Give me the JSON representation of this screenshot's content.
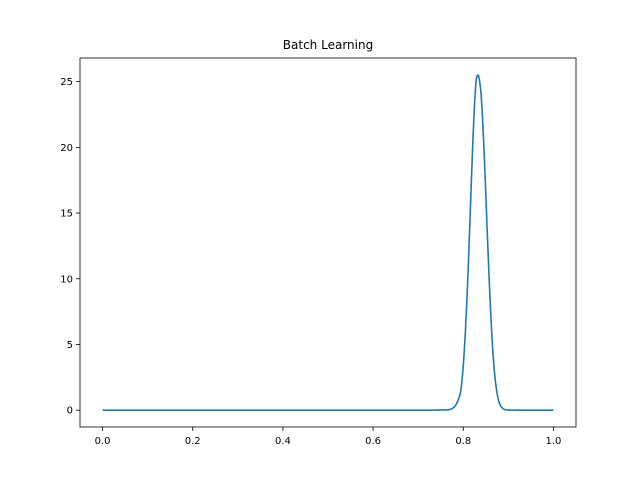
{
  "chart_data": {
    "type": "line",
    "title": "Batch Learning",
    "xlabel": "",
    "ylabel": "",
    "xlim": [
      -0.05,
      1.05
    ],
    "ylim": [
      -1.28,
      26.8
    ],
    "grid": false,
    "xticks": [
      0.0,
      0.2,
      0.4,
      0.6,
      0.8,
      1.0
    ],
    "xtick_labels": [
      "0.0",
      "0.2",
      "0.4",
      "0.6",
      "0.8",
      "1.0"
    ],
    "yticks": [
      0,
      5,
      10,
      15,
      20,
      25
    ],
    "ytick_labels": [
      "0",
      "5",
      "10",
      "15",
      "20",
      "25"
    ],
    "series": [
      {
        "color": "#1f77b4",
        "x": [
          0.0,
          0.1,
          0.2,
          0.3,
          0.4,
          0.5,
          0.6,
          0.7,
          0.76,
          0.78,
          0.79,
          0.795,
          0.8,
          0.805,
          0.81,
          0.815,
          0.82,
          0.825,
          0.83,
          0.833,
          0.836,
          0.84,
          0.845,
          0.85,
          0.855,
          0.86,
          0.865,
          0.87,
          0.875,
          0.88,
          0.89,
          0.9,
          0.95,
          1.0
        ],
        "y": [
          0,
          0,
          0,
          0,
          0,
          0,
          0,
          0,
          0.02,
          0.25,
          0.9,
          1.6,
          3.4,
          6.2,
          10.0,
          14.6,
          19.3,
          23.3,
          25.4,
          25.5,
          25.1,
          23.8,
          20.6,
          16.4,
          12.0,
          8.0,
          4.8,
          2.6,
          1.3,
          0.55,
          0.08,
          0.01,
          0,
          0
        ]
      }
    ]
  }
}
